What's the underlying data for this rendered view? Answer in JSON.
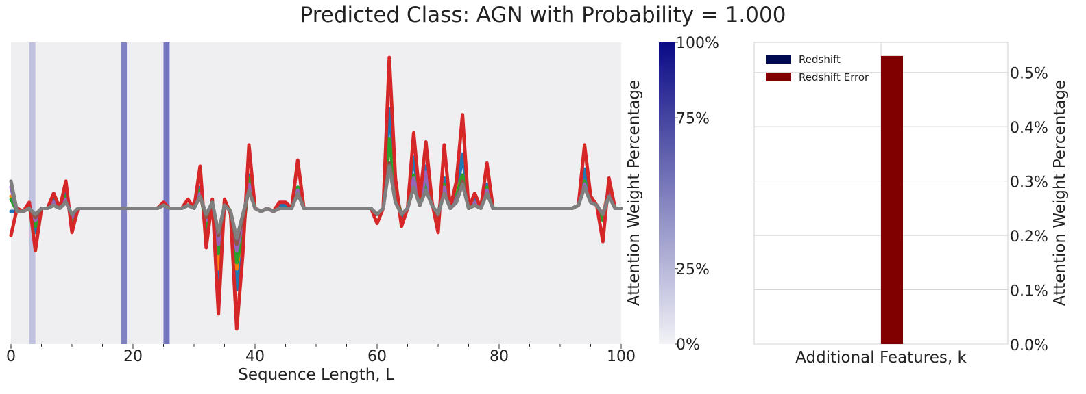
{
  "title": "Predicted Class: AGN with Probability = 1.000",
  "colors": {
    "panel_bg": "#efeff2",
    "grid": "#d4d4d8",
    "highlight": "#1b1f9a",
    "bar_redshift": "#000a50",
    "bar_redshift_error": "#800000"
  },
  "chart_data": [
    {
      "type": "line",
      "xlabel": "Sequence Length, L",
      "ylabel": "",
      "xlim": [
        0,
        100
      ],
      "ylim": [
        0,
        1
      ],
      "xticks": [
        0,
        20,
        40,
        60,
        80,
        100
      ],
      "grid": false,
      "highlighted_positions": [
        {
          "x": 3.5,
          "weight": 0.22
        },
        {
          "x": 18.5,
          "weight": 0.52
        },
        {
          "x": 25.5,
          "weight": 0.58
        }
      ],
      "x": [
        0,
        1,
        2,
        3,
        4,
        5,
        6,
        7,
        8,
        9,
        10,
        11,
        12,
        13,
        14,
        15,
        16,
        17,
        18,
        19,
        20,
        21,
        22,
        23,
        24,
        25,
        26,
        27,
        28,
        29,
        30,
        31,
        32,
        33,
        34,
        35,
        36,
        37,
        38,
        39,
        40,
        41,
        42,
        43,
        44,
        45,
        46,
        47,
        48,
        49,
        50,
        51,
        52,
        53,
        54,
        55,
        56,
        57,
        58,
        59,
        60,
        61,
        62,
        63,
        64,
        65,
        66,
        67,
        68,
        69,
        70,
        71,
        72,
        73,
        74,
        75,
        76,
        77,
        78,
        79,
        80,
        81,
        82,
        83,
        84,
        85,
        86,
        87,
        88,
        89,
        90,
        91,
        92,
        93,
        94,
        95,
        96,
        97,
        98,
        99,
        100
      ],
      "series": [
        {
          "color": "#1f77b4",
          "values": [
            0.44,
            0.44,
            0.44,
            0.46,
            0.37,
            0.45,
            0.45,
            0.48,
            0.45,
            0.5,
            0.4,
            0.45,
            0.45,
            0.45,
            0.45,
            0.45,
            0.45,
            0.45,
            0.45,
            0.45,
            0.45,
            0.45,
            0.45,
            0.45,
            0.45,
            0.46,
            0.45,
            0.45,
            0.45,
            0.46,
            0.45,
            0.52,
            0.38,
            0.47,
            0.2,
            0.47,
            0.44,
            0.18,
            0.35,
            0.56,
            0.45,
            0.44,
            0.45,
            0.44,
            0.46,
            0.46,
            0.45,
            0.52,
            0.45,
            0.45,
            0.45,
            0.45,
            0.45,
            0.45,
            0.45,
            0.45,
            0.45,
            0.45,
            0.45,
            0.45,
            0.43,
            0.45,
            0.78,
            0.52,
            0.42,
            0.45,
            0.62,
            0.47,
            0.59,
            0.46,
            0.42,
            0.55,
            0.45,
            0.48,
            0.63,
            0.45,
            0.48,
            0.45,
            0.53,
            0.45,
            0.45,
            0.45,
            0.45,
            0.45,
            0.45,
            0.45,
            0.45,
            0.45,
            0.45,
            0.45,
            0.45,
            0.45,
            0.45,
            0.46,
            0.58,
            0.48,
            0.46,
            0.42,
            0.52,
            0.45,
            0.45
          ]
        },
        {
          "color": "#ff7f0e",
          "values": [
            0.49,
            0.44,
            0.44,
            0.45,
            0.4,
            0.45,
            0.45,
            0.47,
            0.45,
            0.48,
            0.42,
            0.45,
            0.45,
            0.45,
            0.45,
            0.45,
            0.45,
            0.45,
            0.45,
            0.45,
            0.45,
            0.45,
            0.45,
            0.45,
            0.45,
            0.46,
            0.45,
            0.45,
            0.45,
            0.46,
            0.45,
            0.51,
            0.4,
            0.47,
            0.25,
            0.47,
            0.44,
            0.25,
            0.38,
            0.54,
            0.45,
            0.44,
            0.45,
            0.44,
            0.45,
            0.45,
            0.45,
            0.51,
            0.45,
            0.45,
            0.45,
            0.45,
            0.45,
            0.45,
            0.45,
            0.45,
            0.45,
            0.45,
            0.45,
            0.45,
            0.43,
            0.45,
            0.68,
            0.5,
            0.43,
            0.45,
            0.55,
            0.46,
            0.54,
            0.46,
            0.43,
            0.52,
            0.45,
            0.5,
            0.56,
            0.45,
            0.47,
            0.45,
            0.51,
            0.45,
            0.45,
            0.45,
            0.45,
            0.45,
            0.45,
            0.45,
            0.45,
            0.45,
            0.45,
            0.45,
            0.45,
            0.45,
            0.45,
            0.46,
            0.54,
            0.47,
            0.46,
            0.43,
            0.51,
            0.45,
            0.45
          ]
        },
        {
          "color": "#2ca02c",
          "values": [
            0.48,
            0.44,
            0.44,
            0.45,
            0.39,
            0.45,
            0.45,
            0.47,
            0.45,
            0.49,
            0.41,
            0.45,
            0.45,
            0.45,
            0.45,
            0.45,
            0.45,
            0.45,
            0.45,
            0.45,
            0.45,
            0.45,
            0.45,
            0.45,
            0.45,
            0.46,
            0.45,
            0.45,
            0.45,
            0.46,
            0.45,
            0.51,
            0.39,
            0.47,
            0.3,
            0.47,
            0.44,
            0.27,
            0.36,
            0.55,
            0.45,
            0.44,
            0.45,
            0.44,
            0.45,
            0.45,
            0.45,
            0.52,
            0.45,
            0.45,
            0.45,
            0.45,
            0.45,
            0.45,
            0.45,
            0.45,
            0.45,
            0.45,
            0.45,
            0.45,
            0.43,
            0.45,
            0.68,
            0.5,
            0.43,
            0.45,
            0.56,
            0.46,
            0.53,
            0.46,
            0.43,
            0.53,
            0.45,
            0.49,
            0.56,
            0.45,
            0.47,
            0.45,
            0.52,
            0.45,
            0.45,
            0.45,
            0.45,
            0.45,
            0.45,
            0.45,
            0.45,
            0.45,
            0.45,
            0.45,
            0.45,
            0.45,
            0.45,
            0.46,
            0.54,
            0.47,
            0.46,
            0.41,
            0.5,
            0.45,
            0.45
          ]
        },
        {
          "color": "#9467bd",
          "values": [
            0.52,
            0.44,
            0.44,
            0.45,
            0.41,
            0.45,
            0.45,
            0.47,
            0.45,
            0.48,
            0.42,
            0.45,
            0.45,
            0.45,
            0.45,
            0.45,
            0.45,
            0.45,
            0.45,
            0.45,
            0.45,
            0.45,
            0.45,
            0.45,
            0.45,
            0.46,
            0.45,
            0.45,
            0.45,
            0.46,
            0.45,
            0.5,
            0.41,
            0.47,
            0.33,
            0.46,
            0.44,
            0.31,
            0.4,
            0.53,
            0.45,
            0.44,
            0.45,
            0.44,
            0.45,
            0.45,
            0.45,
            0.51,
            0.45,
            0.45,
            0.45,
            0.45,
            0.45,
            0.45,
            0.45,
            0.45,
            0.45,
            0.45,
            0.45,
            0.45,
            0.43,
            0.45,
            0.6,
            0.48,
            0.43,
            0.45,
            0.55,
            0.46,
            0.57,
            0.46,
            0.43,
            0.52,
            0.45,
            0.48,
            0.53,
            0.45,
            0.47,
            0.45,
            0.51,
            0.45,
            0.45,
            0.45,
            0.45,
            0.45,
            0.45,
            0.45,
            0.45,
            0.45,
            0.45,
            0.45,
            0.45,
            0.45,
            0.45,
            0.46,
            0.53,
            0.47,
            0.46,
            0.43,
            0.5,
            0.45,
            0.45
          ]
        },
        {
          "color": "#d62728",
          "values": [
            0.36,
            0.45,
            0.44,
            0.47,
            0.31,
            0.45,
            0.45,
            0.5,
            0.45,
            0.54,
            0.37,
            0.45,
            0.45,
            0.45,
            0.45,
            0.45,
            0.45,
            0.45,
            0.45,
            0.45,
            0.45,
            0.45,
            0.45,
            0.45,
            0.45,
            0.47,
            0.45,
            0.45,
            0.45,
            0.48,
            0.45,
            0.59,
            0.32,
            0.48,
            0.1,
            0.48,
            0.43,
            0.05,
            0.3,
            0.66,
            0.45,
            0.44,
            0.45,
            0.44,
            0.47,
            0.47,
            0.45,
            0.61,
            0.45,
            0.45,
            0.45,
            0.45,
            0.45,
            0.45,
            0.45,
            0.45,
            0.45,
            0.45,
            0.45,
            0.45,
            0.4,
            0.45,
            0.95,
            0.55,
            0.39,
            0.45,
            0.7,
            0.48,
            0.67,
            0.47,
            0.37,
            0.66,
            0.45,
            0.54,
            0.76,
            0.45,
            0.5,
            0.45,
            0.6,
            0.45,
            0.45,
            0.45,
            0.45,
            0.45,
            0.45,
            0.45,
            0.45,
            0.45,
            0.45,
            0.45,
            0.45,
            0.45,
            0.45,
            0.46,
            0.66,
            0.49,
            0.46,
            0.34,
            0.55,
            0.45,
            0.45
          ]
        },
        {
          "color": "#8c564b",
          "values": [
            0.54,
            0.44,
            0.44,
            0.45,
            0.42,
            0.45,
            0.45,
            0.46,
            0.45,
            0.47,
            0.43,
            0.45,
            0.45,
            0.45,
            0.45,
            0.45,
            0.45,
            0.45,
            0.45,
            0.45,
            0.45,
            0.45,
            0.45,
            0.45,
            0.45,
            0.46,
            0.45,
            0.45,
            0.45,
            0.46,
            0.45,
            0.49,
            0.42,
            0.47,
            0.36,
            0.46,
            0.44,
            0.33,
            0.42,
            0.51,
            0.45,
            0.44,
            0.45,
            0.44,
            0.45,
            0.45,
            0.45,
            0.5,
            0.45,
            0.45,
            0.45,
            0.45,
            0.45,
            0.45,
            0.45,
            0.45,
            0.45,
            0.45,
            0.45,
            0.45,
            0.43,
            0.45,
            0.6,
            0.47,
            0.43,
            0.45,
            0.52,
            0.46,
            0.51,
            0.46,
            0.43,
            0.5,
            0.45,
            0.47,
            0.54,
            0.45,
            0.46,
            0.45,
            0.5,
            0.45,
            0.45,
            0.45,
            0.45,
            0.45,
            0.45,
            0.45,
            0.45,
            0.45,
            0.45,
            0.45,
            0.45,
            0.45,
            0.45,
            0.46,
            0.52,
            0.47,
            0.46,
            0.43,
            0.49,
            0.45,
            0.45
          ]
        },
        {
          "color": "#7f7f7f",
          "values": [
            0.54,
            0.44,
            0.44,
            0.45,
            0.43,
            0.45,
            0.45,
            0.46,
            0.45,
            0.47,
            0.43,
            0.45,
            0.45,
            0.45,
            0.45,
            0.45,
            0.45,
            0.45,
            0.45,
            0.45,
            0.45,
            0.45,
            0.45,
            0.45,
            0.45,
            0.46,
            0.45,
            0.45,
            0.45,
            0.46,
            0.45,
            0.49,
            0.43,
            0.47,
            0.37,
            0.46,
            0.44,
            0.35,
            0.43,
            0.51,
            0.45,
            0.44,
            0.45,
            0.44,
            0.45,
            0.45,
            0.45,
            0.5,
            0.45,
            0.45,
            0.45,
            0.45,
            0.45,
            0.45,
            0.45,
            0.45,
            0.45,
            0.45,
            0.45,
            0.45,
            0.43,
            0.45,
            0.59,
            0.47,
            0.43,
            0.45,
            0.52,
            0.46,
            0.51,
            0.46,
            0.43,
            0.5,
            0.45,
            0.47,
            0.53,
            0.45,
            0.46,
            0.45,
            0.5,
            0.45,
            0.45,
            0.45,
            0.45,
            0.45,
            0.45,
            0.45,
            0.45,
            0.45,
            0.45,
            0.45,
            0.45,
            0.45,
            0.45,
            0.46,
            0.52,
            0.47,
            0.46,
            0.43,
            0.49,
            0.45,
            0.45
          ]
        }
      ]
    },
    {
      "type": "colorbar",
      "label": "Attention Weight Percentage",
      "range": [
        0,
        100
      ],
      "ticks": [
        "0%",
        "25%",
        "75%",
        "100%"
      ],
      "tick_values": [
        0,
        25,
        75,
        100
      ],
      "colors": [
        "#f2f2f6",
        "#0a0a85"
      ]
    },
    {
      "type": "bar",
      "xlabel": "Additional Features, k",
      "ylabel": "Attention Weight Percentage",
      "ylim": [
        0,
        0.555
      ],
      "yticks": [
        "0.0%",
        "0.1%",
        "0.2%",
        "0.3%",
        "0.4%",
        "0.5%"
      ],
      "ytick_values": [
        0,
        0.1,
        0.2,
        0.3,
        0.4,
        0.5
      ],
      "grid": true,
      "legend": "top-left",
      "series": [
        {
          "name": "Redshift",
          "value": 0.0,
          "color": "#000a50"
        },
        {
          "name": "Redshift Error",
          "value": 0.53,
          "color": "#800000"
        }
      ]
    }
  ]
}
